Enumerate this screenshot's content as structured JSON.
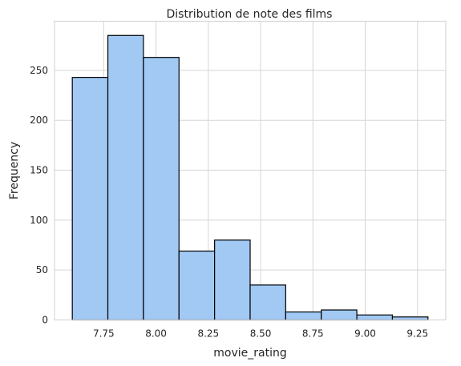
{
  "chart_data": {
    "type": "bar",
    "title": "Distribution de note des films",
    "xlabel": "movie_rating",
    "ylabel": "Frequency",
    "bins": [
      {
        "start": 7.6,
        "end": 7.77,
        "count": 243
      },
      {
        "start": 7.77,
        "end": 7.94,
        "count": 285
      },
      {
        "start": 7.94,
        "end": 8.11,
        "count": 263
      },
      {
        "start": 8.11,
        "end": 8.28,
        "count": 69
      },
      {
        "start": 8.28,
        "end": 8.45,
        "count": 80
      },
      {
        "start": 8.45,
        "end": 8.62,
        "count": 35
      },
      {
        "start": 8.62,
        "end": 8.79,
        "count": 8
      },
      {
        "start": 8.79,
        "end": 8.96,
        "count": 10
      },
      {
        "start": 8.96,
        "end": 9.13,
        "count": 5
      },
      {
        "start": 9.13,
        "end": 9.3,
        "count": 3
      }
    ],
    "xticks": [
      "7.75",
      "8.00",
      "8.25",
      "8.50",
      "8.75",
      "9.00",
      "9.25"
    ],
    "yticks": [
      "0",
      "50",
      "100",
      "150",
      "200",
      "250"
    ],
    "xlim": [
      7.515,
      9.385
    ],
    "ylim": [
      0,
      299.25
    ],
    "grid": true,
    "bar_color": "#a1c9f4",
    "edge_color": "#000000"
  }
}
